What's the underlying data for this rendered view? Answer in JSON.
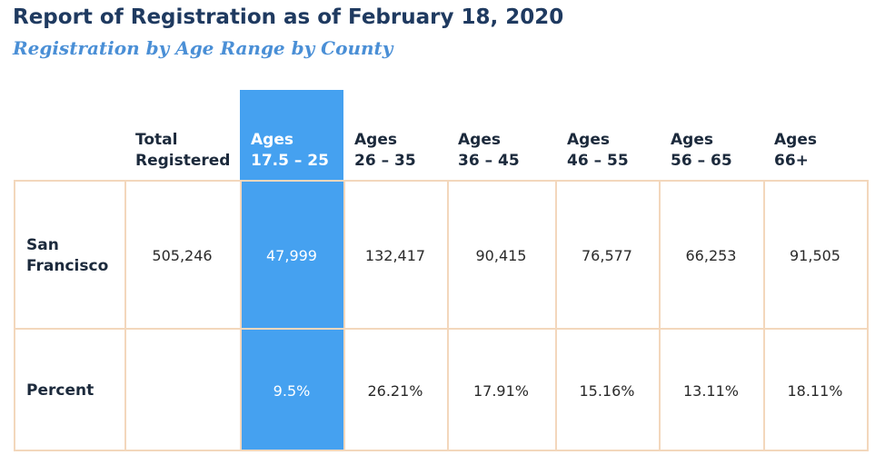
{
  "title": "Report of Registration as of February 18, 2020",
  "subtitle": "Registration by Age Range by County",
  "colors": {
    "title": "#1f3a60",
    "subtitle": "#4a8fd6",
    "highlight": "#45a1f0",
    "grid_border": "#f3d7bc"
  },
  "table": {
    "columns": [
      {
        "line1": "Total",
        "line2": "Registered"
      },
      {
        "line1": "Ages",
        "line2": "17.5 – 25"
      },
      {
        "line1": "Ages",
        "line2": "26 – 35"
      },
      {
        "line1": "Ages",
        "line2": "36 – 45"
      },
      {
        "line1": "Ages",
        "line2": "46 – 55"
      },
      {
        "line1": "Ages",
        "line2": "56 – 65"
      },
      {
        "line1": "Ages",
        "line2": "66+"
      }
    ],
    "rows": [
      {
        "label_line1": "San",
        "label_line2": "Francisco",
        "cells": [
          "505,246",
          "47,999",
          "132,417",
          "90,415",
          "76,577",
          "66,253",
          "91,505"
        ]
      },
      {
        "label_line1": "Percent",
        "label_line2": "",
        "cells": [
          "",
          "9.5%",
          "26.21%",
          "17.91%",
          "15.16%",
          "13.11%",
          "18.11%"
        ]
      }
    ],
    "highlighted_column": 1
  }
}
